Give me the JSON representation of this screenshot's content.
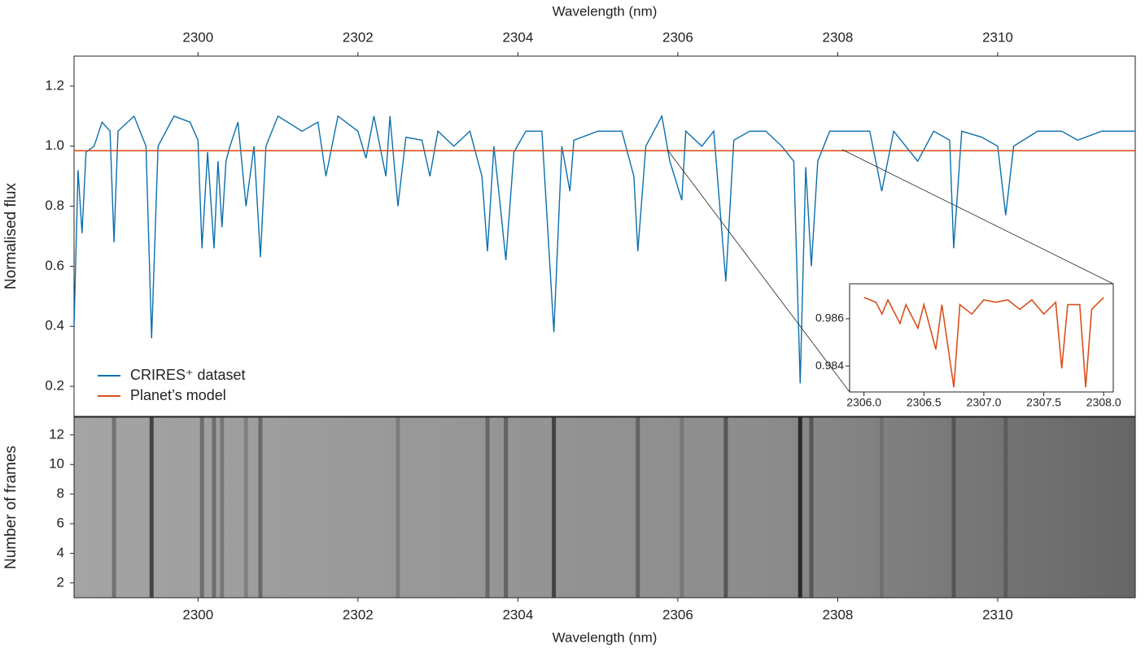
{
  "chart_data": [
    {
      "type": "line",
      "xlabel": "Wavelength (nm)",
      "ylabel": "Normalised flux",
      "xlim": [
        2298.45,
        2311.72
      ],
      "xticks": [
        2300,
        2302,
        2304,
        2306,
        2308,
        2310
      ],
      "ylim": [
        0.1,
        1.3
      ],
      "yticks": [
        0.2,
        0.4,
        0.6,
        0.8,
        {
          "value": 1,
          "label": "1.0"
        },
        1.2
      ],
      "legend": "lower left",
      "series": [
        {
          "name": "CRIRES⁺ dataset",
          "color": "#0a6fad",
          "x": [
            2298.45,
            2298.5,
            2298.55,
            2298.6,
            2298.7,
            2298.8,
            2298.9,
            2298.95,
            2299.0,
            2299.2,
            2299.35,
            2299.42,
            2299.5,
            2299.7,
            2299.9,
            2300.0,
            2300.05,
            2300.12,
            2300.2,
            2300.25,
            2300.3,
            2300.35,
            2300.4,
            2300.5,
            2300.6,
            2300.7,
            2300.78,
            2300.85,
            2301.0,
            2301.3,
            2301.5,
            2301.6,
            2301.75,
            2302.0,
            2302.1,
            2302.2,
            2302.35,
            2302.4,
            2302.5,
            2302.6,
            2302.8,
            2302.9,
            2303.0,
            2303.2,
            2303.4,
            2303.55,
            2303.62,
            2303.7,
            2303.78,
            2303.85,
            2303.95,
            2304.1,
            2304.3,
            2304.45,
            2304.55,
            2304.65,
            2304.7,
            2305.0,
            2305.3,
            2305.45,
            2305.5,
            2305.6,
            2305.8,
            2305.9,
            2306.05,
            2306.1,
            2306.3,
            2306.45,
            2306.6,
            2306.7,
            2306.9,
            2307.1,
            2307.3,
            2307.45,
            2307.53,
            2307.6,
            2307.67,
            2307.75,
            2307.9,
            2308.1,
            2308.4,
            2308.55,
            2308.7,
            2309.0,
            2309.2,
            2309.4,
            2309.45,
            2309.55,
            2309.8,
            2310.0,
            2310.1,
            2310.2,
            2310.5,
            2310.8,
            2311.0,
            2311.3,
            2311.72
          ],
          "values": [
            0.4,
            0.92,
            0.71,
            0.98,
            1.0,
            1.08,
            1.05,
            0.68,
            1.05,
            1.1,
            1.0,
            0.36,
            1.0,
            1.1,
            1.08,
            1.02,
            0.66,
            0.98,
            0.66,
            0.95,
            0.73,
            0.95,
            1.0,
            1.08,
            0.8,
            1.0,
            0.63,
            1.0,
            1.1,
            1.05,
            1.08,
            0.9,
            1.1,
            1.05,
            0.96,
            1.1,
            0.9,
            1.1,
            0.8,
            1.03,
            1.02,
            0.9,
            1.05,
            1.0,
            1.05,
            0.9,
            0.65,
            1.0,
            0.8,
            0.62,
            0.98,
            1.05,
            1.05,
            0.38,
            1.0,
            0.85,
            1.02,
            1.05,
            1.05,
            0.9,
            0.65,
            1.0,
            1.1,
            0.95,
            0.82,
            1.05,
            1.0,
            1.05,
            0.55,
            1.02,
            1.05,
            1.05,
            1.0,
            0.95,
            0.21,
            0.93,
            0.6,
            0.95,
            1.05,
            1.05,
            1.05,
            0.85,
            1.05,
            0.95,
            1.05,
            1.02,
            0.66,
            1.05,
            1.03,
            1.0,
            0.77,
            1.0,
            1.05,
            1.05,
            1.02,
            1.05,
            1.05
          ]
        },
        {
          "name": "Planet’s model",
          "color": "#d9501c",
          "x": [
            2298.45,
            2311.72
          ],
          "values": [
            0.985,
            0.985
          ]
        }
      ]
    },
    {
      "type": "line",
      "xlim": [
        2305.88,
        2308.08
      ],
      "xticks": [
        {
          "value": 2306,
          "label": "2306.0"
        },
        2306.5,
        {
          "value": 2307,
          "label": "2307.0"
        },
        2307.5,
        {
          "value": 2308,
          "label": "2308.0"
        }
      ],
      "ylim": [
        0.9829,
        0.98748
      ],
      "yticks": [
        0.984,
        0.986
      ],
      "series": [
        {
          "color": "#d9501c",
          "x": [
            2306.0,
            2306.1,
            2306.15,
            2306.2,
            2306.3,
            2306.35,
            2306.45,
            2306.5,
            2306.6,
            2306.65,
            2306.75,
            2306.8,
            2306.9,
            2307.0,
            2307.1,
            2307.2,
            2307.3,
            2307.4,
            2307.5,
            2307.6,
            2307.65,
            2307.7,
            2307.8,
            2307.85,
            2307.9,
            2308.0
          ],
          "values": [
            0.9869,
            0.9867,
            0.9862,
            0.9868,
            0.9858,
            0.9866,
            0.9856,
            0.9866,
            0.9847,
            0.9866,
            0.9831,
            0.9866,
            0.9862,
            0.9868,
            0.9867,
            0.9868,
            0.9864,
            0.9868,
            0.9862,
            0.9867,
            0.9839,
            0.9866,
            0.9866,
            0.9831,
            0.9864,
            0.9869
          ]
        }
      ]
    },
    {
      "type": "heatmap",
      "xlabel": "Wavelength (nm)",
      "ylabel": "Number of frames",
      "xlim": [
        2298.45,
        2311.72
      ],
      "xticks": [
        2300,
        2302,
        2304,
        2306,
        2308,
        2310
      ],
      "ylim": [
        1,
        13.2
      ],
      "yticks": [
        2,
        4,
        6,
        8,
        10,
        12
      ],
      "x": [
        2298.95,
        2299.42,
        2300.05,
        2300.2,
        2300.3,
        2300.6,
        2300.78,
        2302.5,
        2303.62,
        2303.85,
        2304.45,
        2305.5,
        2306.05,
        2306.6,
        2307.53,
        2307.67,
        2308.55,
        2309.45,
        2310.1
      ],
      "values": [
        0.68,
        0.36,
        0.66,
        0.66,
        0.73,
        0.8,
        0.63,
        0.8,
        0.65,
        0.62,
        0.38,
        0.65,
        0.82,
        0.55,
        0.21,
        0.6,
        0.85,
        0.66,
        0.77
      ]
    }
  ]
}
